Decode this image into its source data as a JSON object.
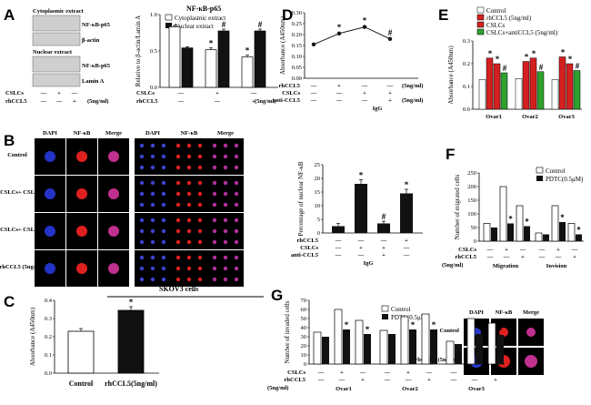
{
  "panels": {
    "A": "A",
    "B": "B",
    "C": "C",
    "D": "D",
    "E": "E",
    "F": "F",
    "G": "G"
  },
  "colors": {
    "control": "#ffffff",
    "rhccl5": "#d42020",
    "cslcs": "#d42020",
    "cslcs_anti": "#2ea02e",
    "black": "#111111",
    "gray": "#bbbbbb"
  },
  "blotA": {
    "cyto_title": "Cytoplasmic extract",
    "cyto_bands": [
      "NF-κB-p65",
      "β-actin"
    ],
    "nuc_title": "Nuclear extract",
    "nuc_bands": [
      "NF-κB-p65",
      "Lamin A"
    ],
    "row_labels": [
      "CSLCs",
      "rhCCL5"
    ],
    "row_signs": [
      [
        "—",
        "+",
        "—"
      ],
      [
        "—",
        "—",
        "+"
      ]
    ],
    "unit": "(5ng/ml)"
  },
  "images": {
    "B_headers": [
      "DAPI",
      "NF-κB",
      "Merge",
      "DAPI",
      "NF-κB",
      "Merge"
    ],
    "B_rows": [
      "Control",
      "NCSLCs+ CSLCs",
      "NCSLCs+ CSLCs + anti-CCL5 (5ng/ml)",
      "rhCCL5 (5ng/ml)"
    ],
    "C_headers": [
      "DAPI",
      "NF-κB",
      "Merge"
    ],
    "C_rows": [
      "Control",
      "rhCCL5 (5ng/ml)"
    ],
    "C_title": "SKOV3 cells"
  },
  "chart_data": [
    {
      "id": "A",
      "type": "bar",
      "title": "NF-κB-p65",
      "ylabel": "Relative to β-actin/Lamin A",
      "ylim": [
        0,
        1.2
      ],
      "yticks": [
        "0.0",
        "0.5",
        "1.0"
      ],
      "series": [
        {
          "name": "Cytoplasmic extract",
          "values": [
            1.0,
            0.62,
            0.5
          ]
        },
        {
          "name": "Nuclear extract",
          "values": [
            0.65,
            0.93,
            0.93
          ]
        }
      ],
      "errors": [
        [
          0.02,
          0.03,
          0.03
        ],
        [
          0.02,
          0.03,
          0.03
        ]
      ],
      "marks": [
        [
          "",
          "*",
          "*"
        ],
        [
          "",
          "#",
          "#"
        ]
      ],
      "row_labels": [
        "CSLCs",
        "rhCCL5"
      ],
      "row_signs": [
        [
          "—",
          "+",
          "—"
        ],
        [
          "—",
          "—",
          "+"
        ]
      ],
      "unit": "(5ng/ml)"
    },
    {
      "id": "D",
      "type": "scatter",
      "title": "",
      "ylabel": "Absorbance (A450nm)",
      "ylim": [
        0,
        0.3
      ],
      "yticks": [
        "0.00",
        "0.05",
        "0.10",
        "0.15",
        "0.20",
        "0.25",
        "0.30"
      ],
      "x": [
        1,
        2,
        3,
        4
      ],
      "values": [
        0.155,
        0.205,
        0.235,
        0.18
      ],
      "marks": [
        "",
        "*",
        "*",
        "#"
      ],
      "row_labels": [
        "rhCCL5",
        "CSLCs",
        "anti-CCL5"
      ],
      "row_signs": [
        [
          "—",
          "+",
          "—",
          "—"
        ],
        [
          "—",
          "—",
          "+",
          "+"
        ],
        [
          "—",
          "—",
          "—",
          "+"
        ]
      ],
      "units": [
        "(5ng/ml)",
        "",
        "(5ng/ml)"
      ],
      "extra": "IgG"
    },
    {
      "id": "E",
      "type": "bar",
      "title": "",
      "ylabel": "Absorbance (A450nm)",
      "ylim": [
        0,
        0.3
      ],
      "yticks": [
        "0.0",
        "0.1",
        "0.2",
        "0.3"
      ],
      "categories": [
        "Ovar1",
        "Ovar2",
        "Ovar3"
      ],
      "series": [
        {
          "name": "Control",
          "values": [
            0.13,
            0.135,
            0.13
          ]
        },
        {
          "name": "rhCCL5 (5ng/ml)",
          "values": [
            0.225,
            0.21,
            0.23
          ]
        },
        {
          "name": "CSLCs",
          "values": [
            0.2,
            0.225,
            0.2
          ]
        },
        {
          "name": "CSLCs+antiCCL5 (5ng/ml)",
          "values": [
            0.16,
            0.165,
            0.17
          ]
        }
      ],
      "marks": [
        [
          "",
          "*",
          "*",
          "#"
        ],
        [
          "",
          "*",
          "*",
          "#"
        ],
        [
          "",
          "*",
          "*",
          "#"
        ]
      ]
    },
    {
      "id": "B",
      "type": "bar",
      "title": "",
      "ylabel": "Percentage of nuclear NF-κB",
      "ylim": [
        0,
        25
      ],
      "yticks": [
        "0",
        "5",
        "10",
        "15",
        "20",
        "25"
      ],
      "values": [
        2.5,
        18,
        3.5,
        14.5
      ],
      "errors": [
        1,
        1.5,
        0.8,
        1.5
      ],
      "marks": [
        "",
        "*",
        "#",
        "*"
      ],
      "row_labels": [
        "rhCCL5",
        "CSLCs",
        "anti-CCL5"
      ],
      "row_signs": [
        [
          "—",
          "—",
          "—",
          "+"
        ],
        [
          "—",
          "+",
          "+",
          "—"
        ],
        [
          "—",
          "—",
          "+",
          "—"
        ]
      ],
      "extra": "IgG"
    },
    {
      "id": "F",
      "type": "bar",
      "title": "",
      "ylabel": "Number of migrated cells",
      "ylim": [
        0,
        250
      ],
      "yticks": [
        "0",
        "50",
        "100",
        "150",
        "200",
        "250"
      ],
      "groups": [
        {
          "control": 65,
          "pdtc": 50
        },
        {
          "control": 200,
          "pdtc": 65
        },
        {
          "control": 130,
          "pdtc": 55
        },
        {
          "control": 30,
          "pdtc": 25
        },
        {
          "control": 130,
          "pdtc": 70
        },
        {
          "control": 65,
          "pdtc": 25
        }
      ],
      "marks": [
        "",
        "*",
        "*",
        "",
        "*",
        "*"
      ],
      "legend": [
        "Control",
        "PDTC(0.5μM)"
      ],
      "row_labels": [
        "CSLCs",
        "rhCCL5"
      ],
      "unit": "(5ng/ml)",
      "row_signs": [
        [
          "—",
          "+",
          "—",
          "—",
          "+",
          "—"
        ],
        [
          "—",
          "—",
          "+",
          "—",
          "—",
          "+"
        ]
      ],
      "categories": [
        "Migration",
        "Invision"
      ]
    },
    {
      "id": "G",
      "type": "bar",
      "title": "",
      "ylabel": "Number of invaded cells",
      "ylim": [
        0,
        70
      ],
      "yticks": [
        "0",
        "10",
        "20",
        "30",
        "40",
        "50",
        "60",
        "70"
      ],
      "groups": [
        {
          "control": 35,
          "pdtc": 30
        },
        {
          "control": 60,
          "pdtc": 38
        },
        {
          "control": 48,
          "pdtc": 33
        },
        {
          "control": 37,
          "pdtc": 33
        },
        {
          "control": 52,
          "pdtc": 38
        },
        {
          "control": 55,
          "pdtc": 38
        },
        {
          "control": 25,
          "pdtc": 22
        },
        {
          "control": 50,
          "pdtc": 33
        },
        {
          "control": 45,
          "pdtc": 32
        }
      ],
      "marks": [
        "",
        "*",
        "*",
        "",
        "*",
        "*",
        "",
        "*",
        "*"
      ],
      "legend": [
        "Control",
        "PDTC(0.5μM)"
      ],
      "row_labels": [
        "CSLCs",
        "rhCCL5"
      ],
      "unit": "(5ng/ml)",
      "row_signs": [
        [
          "—",
          "+",
          "—",
          "—",
          "+",
          "—",
          "—",
          "+",
          "—"
        ],
        [
          "—",
          "—",
          "+",
          "—",
          "—",
          "+",
          "—",
          "—",
          "+"
        ]
      ],
      "categories": [
        "Ovar1",
        "Ovar2",
        "Ovar3"
      ]
    },
    {
      "id": "C",
      "type": "bar",
      "title": "",
      "ylabel": "Absorbance (A450nm)",
      "ylim": [
        0,
        0.4
      ],
      "yticks": [
        "0.0",
        "0.1",
        "0.2",
        "0.3",
        "0.4"
      ],
      "categories": [
        "Control",
        "rhCCL5(5ng/ml)"
      ],
      "values": [
        0.23,
        0.345
      ],
      "errors": [
        0.015,
        0.02
      ],
      "marks": [
        "",
        "*"
      ]
    }
  ]
}
